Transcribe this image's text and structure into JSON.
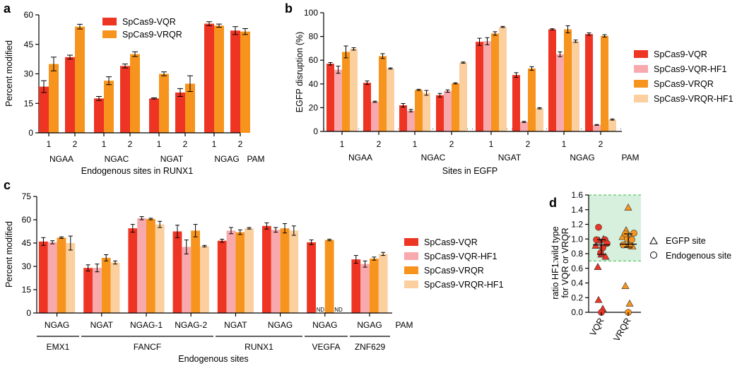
{
  "chart_data": [
    {
      "panel": "a",
      "type": "bar",
      "ylabel": "Percent modified",
      "xlabel": "Endogenous sites in RUNX1",
      "ylim": [
        0,
        60
      ],
      "yticks": [
        0,
        15,
        30,
        45,
        60
      ],
      "pam_label": "PAM",
      "legend_position": "top-left",
      "series": [
        {
          "name": "SpCas9-VQR",
          "color": "#ee3524"
        },
        {
          "name": "SpCas9-VRQR",
          "color": "#f7941d"
        }
      ],
      "groups": [
        {
          "site": "1",
          "pam": "NGAA",
          "values": [
            23.5,
            35
          ],
          "errors": [
            3,
            3.5
          ]
        },
        {
          "site": "2",
          "pam": "NGAA",
          "values": [
            38.5,
            54
          ],
          "errors": [
            1,
            1.2
          ]
        },
        {
          "site": "1",
          "pam": "NGAC",
          "values": [
            17.5,
            26.5
          ],
          "errors": [
            1,
            2
          ]
        },
        {
          "site": "2",
          "pam": "NGAC",
          "values": [
            34,
            40
          ],
          "errors": [
            1,
            1.2
          ]
        },
        {
          "site": "1",
          "pam": "NGAT",
          "values": [
            17.5,
            30
          ],
          "errors": [
            0.3,
            1
          ]
        },
        {
          "site": "2",
          "pam": "NGAT",
          "values": [
            20.5,
            25
          ],
          "errors": [
            2,
            4
          ]
        },
        {
          "site": "1",
          "pam": "NGAG",
          "values": [
            55.5,
            54.5
          ],
          "errors": [
            1,
            0.8
          ]
        },
        {
          "site": "2",
          "pam": "NGAG",
          "values": [
            52,
            51.5
          ],
          "errors": [
            2,
            1.5
          ]
        }
      ],
      "pam_groups": [
        "NGAA",
        "NGAC",
        "NGAT",
        "NGAG"
      ]
    },
    {
      "panel": "b",
      "type": "bar",
      "ylabel": "EGFP disruption (%)",
      "xlabel": "Sites in EGFP",
      "ylim": [
        0,
        100
      ],
      "yticks": [
        0,
        20,
        40,
        60,
        80,
        100
      ],
      "baseline_value": 2,
      "pam_label": "PAM",
      "legend_position": "right",
      "series": [
        {
          "name": "SpCas9-VQR",
          "color": "#ee3524"
        },
        {
          "name": "SpCas9-VQR-HF1",
          "color": "#f7a9ad"
        },
        {
          "name": "SpCas9-VRQR",
          "color": "#f7941d"
        },
        {
          "name": "SpCas9-VRQR-HF1",
          "color": "#fbcf9e"
        }
      ],
      "groups": [
        {
          "site": "1",
          "pam": "NGAA",
          "values": [
            57,
            52,
            67,
            69.5
          ],
          "errors": [
            1,
            3,
            5,
            1
          ]
        },
        {
          "site": "2",
          "pam": "NGAA",
          "values": [
            41,
            25,
            63.5,
            53
          ],
          "errors": [
            1.5,
            0.5,
            2,
            0.5
          ]
        },
        {
          "site": "1",
          "pam": "NGAC",
          "values": [
            22,
            17.5,
            35,
            32.5
          ],
          "errors": [
            1.5,
            1,
            0.5,
            2
          ]
        },
        {
          "site": "2",
          "pam": "NGAC",
          "values": [
            30.5,
            34,
            40.5,
            58
          ],
          "errors": [
            1.5,
            1,
            0.5,
            0.5
          ]
        },
        {
          "site": "1",
          "pam": "NGAT",
          "values": [
            75.5,
            76,
            82.5,
            88
          ],
          "errors": [
            3,
            3,
            1.5,
            0.5
          ]
        },
        {
          "site": "2",
          "pam": "NGAT",
          "values": [
            47.5,
            8,
            53,
            19.5
          ],
          "errors": [
            2,
            0.5,
            1.5,
            0.5
          ]
        },
        {
          "site": "1",
          "pam": "NGAG",
          "values": [
            86,
            65,
            86,
            76
          ],
          "errors": [
            0.5,
            2,
            3,
            1
          ]
        },
        {
          "site": "2",
          "pam": "NGAG",
          "values": [
            82,
            5.5,
            80.5,
            10
          ],
          "errors": [
            1,
            0.3,
            1,
            0.5
          ]
        }
      ],
      "pam_groups": [
        "NGAA",
        "NGAC",
        "NGAT",
        "NGAG"
      ]
    },
    {
      "panel": "c",
      "type": "bar",
      "ylabel": "Percent modified",
      "xlabel": "Endogenous sites",
      "ylim": [
        0,
        75
      ],
      "yticks": [
        0,
        15,
        30,
        45,
        60,
        75
      ],
      "pam_label": "PAM",
      "legend_position": "right",
      "series": [
        {
          "name": "SpCas9-VQR",
          "color": "#ee3524"
        },
        {
          "name": "SpCas9-VQR-HF1",
          "color": "#f7a9ad"
        },
        {
          "name": "SpCas9-VRQR",
          "color": "#f7941d"
        },
        {
          "name": "SpCas9-VRQR-HF1",
          "color": "#fbcf9e"
        }
      ],
      "groups": [
        {
          "pam": "NGAG",
          "gene": "EMX1",
          "values": [
            46,
            45.5,
            48.5,
            45
          ],
          "errors": [
            2.5,
            1,
            0.5,
            4.5
          ]
        },
        {
          "pam": "NGAT",
          "gene": "FANCF",
          "values": [
            29,
            29,
            35.5,
            32.5
          ],
          "errors": [
            2,
            2.5,
            2,
            1
          ]
        },
        {
          "pam": "NGAG-1",
          "gene": "FANCF",
          "values": [
            54.5,
            61,
            60.5,
            57
          ],
          "errors": [
            2.5,
            1,
            0.5,
            2
          ]
        },
        {
          "pam": "NGAG-2",
          "gene": "FANCF",
          "values": [
            52.5,
            42.5,
            53,
            43
          ],
          "errors": [
            4,
            4.5,
            4,
            0.5
          ]
        },
        {
          "pam": "NGAT",
          "gene": "RUNX1",
          "values": [
            46.5,
            53,
            52,
            54.5
          ],
          "errors": [
            1,
            2,
            1.5,
            0.5
          ]
        },
        {
          "pam": "NGAG",
          "gene": "RUNX1",
          "values": [
            56,
            53.5,
            54.5,
            53
          ],
          "errors": [
            2,
            1.5,
            3,
            3
          ]
        },
        {
          "pam": "NGAG",
          "gene": "VEGFA",
          "values": [
            45.5,
            null,
            47,
            null
          ],
          "errors": [
            1.5,
            0,
            0.5,
            0
          ],
          "nd_label": "ND"
        },
        {
          "pam": "NGAG",
          "gene": "ZNF629",
          "values": [
            34.5,
            31.5,
            35,
            38
          ],
          "errors": [
            2.5,
            2,
            1,
            1
          ]
        }
      ],
      "gene_groups": [
        "EMX1",
        "FANCF",
        "RUNX1",
        "VEGFA",
        "ZNF629"
      ]
    },
    {
      "panel": "d",
      "type": "scatter",
      "ylabel_line1": "ratio HF1:wild type",
      "ylabel_line2": "for VQR or VRQR",
      "ylim": [
        0,
        1.6
      ],
      "yticks": [
        "0.0",
        "0.2",
        "0.4",
        "0.6",
        "0.8",
        "1.0",
        "1.2",
        "1.4",
        "1.6"
      ],
      "band": [
        0.7,
        1.6
      ],
      "categories": [
        "VQR",
        "VRQR"
      ],
      "legend": [
        {
          "marker": "triangle",
          "label": "EGFP site"
        },
        {
          "marker": "circle",
          "label": "Endogenous site"
        }
      ],
      "series": [
        {
          "name": "VQR",
          "color": "#ee3524",
          "triangle": [
            0.91,
            0.62,
            0.98,
            0.79,
            1.0,
            0.76,
            0.17,
            0.05
          ],
          "circle": [
            0.99,
            1.16,
            0.81,
            0.88,
            0.99,
            0.94,
            0.0
          ],
          "median": 0.92,
          "q1": 0.79,
          "q3": 0.99
        },
        {
          "name": "VRQR",
          "color": "#f7941d",
          "triangle": [
            1.03,
            0.92,
            1.12,
            1.43,
            1.02,
            0.9,
            0.36,
            0.12
          ],
          "circle": [
            0.92,
            1.07,
            1.0,
            0.91,
            0.99,
            1.08,
            0.0
          ],
          "median": 0.93,
          "q1": 0.89,
          "q3": 1.07
        }
      ]
    }
  ]
}
